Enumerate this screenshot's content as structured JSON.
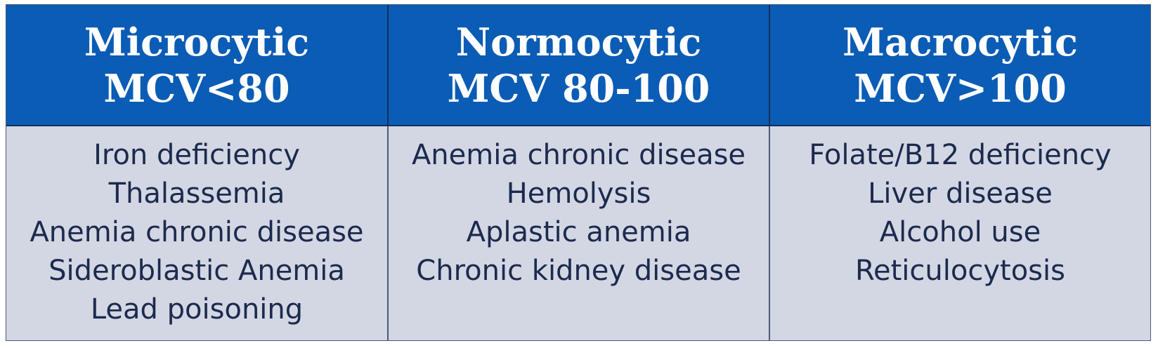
{
  "table": {
    "columns": [
      {
        "title": "Microcytic",
        "subtitle": "MCV<80",
        "items": [
          "Iron deficiency",
          "Thalassemia",
          "Anemia chronic disease",
          "Sideroblastic Anemia",
          "Lead poisoning"
        ]
      },
      {
        "title": "Normocytic",
        "subtitle": "MCV 80-100",
        "items": [
          "Anemia chronic disease",
          "Hemolysis",
          "Aplastic anemia",
          "Chronic kidney disease"
        ]
      },
      {
        "title": "Macrocytic",
        "subtitle": "MCV>100",
        "items": [
          "Folate/B12 deficiency",
          "Liver disease",
          "Alcohol use",
          "Reticulocytosis"
        ]
      }
    ]
  },
  "colors": {
    "header_background": "#0b5cb4",
    "header_text": "#ffffff",
    "body_background": "#d3d7e4",
    "body_text": "#1c2a4d"
  }
}
